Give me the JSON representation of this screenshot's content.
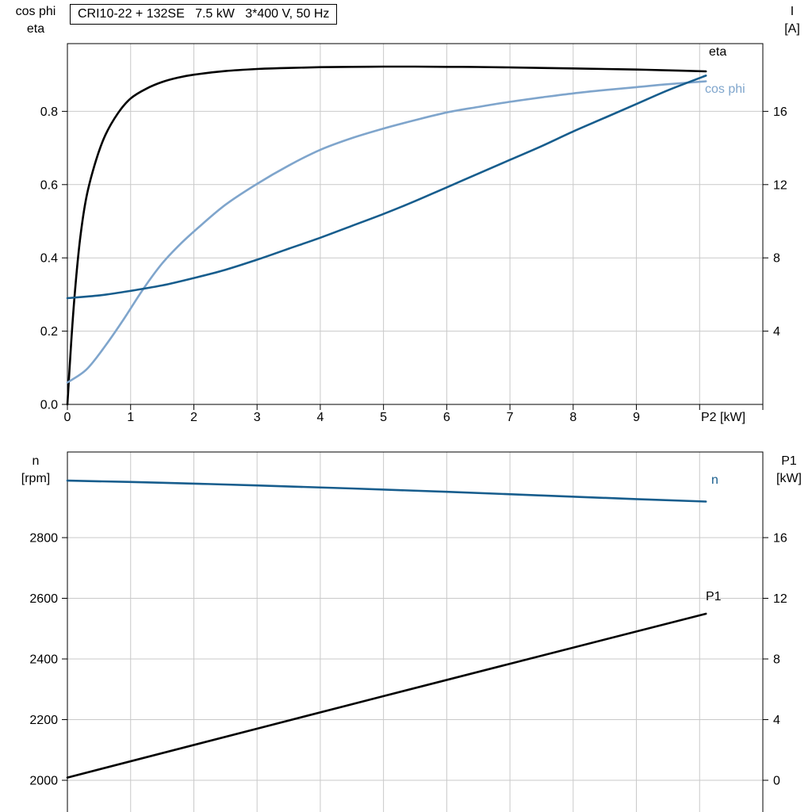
{
  "page": {
    "background": "#ffffff"
  },
  "title_box": {
    "text": "CRI10-22 + 132SE   7.5 kW   3*400 V, 50 Hz"
  },
  "corner_labels": {
    "top_left": [
      "cos phi",
      "eta"
    ],
    "top_right": [
      "I",
      "[A]"
    ],
    "bottom_left": [
      "n",
      "[rpm]"
    ],
    "bottom_right": [
      "P1",
      "[kW]"
    ]
  },
  "curve_labels": [
    {
      "id": "eta",
      "text": "eta",
      "color": "#000000"
    },
    {
      "id": "cosphi",
      "text": "cos phi",
      "color": "#7fa5cc"
    },
    {
      "id": "n",
      "text": "n",
      "color": "#175d8d"
    },
    {
      "id": "p1",
      "text": "P1",
      "color": "#000000"
    }
  ],
  "colors": {
    "grid": "#c9c9c9",
    "axis": "#000000"
  },
  "chart_data": [
    {
      "type": "line",
      "title": "CRI10-22 + 132SE 7.5 kW 3*400 V, 50 Hz",
      "x_axis": {
        "label": "P2 [kW]",
        "min": 0,
        "max": 11,
        "grid_step": 1,
        "ticks": [
          {
            "v": 0,
            "label": "0"
          },
          {
            "v": 1,
            "label": "1"
          },
          {
            "v": 2,
            "label": "2"
          },
          {
            "v": 3,
            "label": "3"
          },
          {
            "v": 4,
            "label": "4"
          },
          {
            "v": 5,
            "label": "5"
          },
          {
            "v": 6,
            "label": "6"
          },
          {
            "v": 7,
            "label": "7"
          },
          {
            "v": 8,
            "label": "8"
          },
          {
            "v": 9,
            "label": "9"
          }
        ]
      },
      "left_axis": {
        "name": "cos phi / eta",
        "ticks": [
          {
            "v": 0,
            "label": "0.0"
          },
          {
            "v": 0.2,
            "label": "0.2"
          },
          {
            "v": 0.4,
            "label": "0.4"
          },
          {
            "v": 0.6,
            "label": "0.6"
          },
          {
            "v": 0.8,
            "label": "0.8"
          }
        ]
      },
      "right_axis": {
        "name": "I [A]",
        "ticks": [
          {
            "v": 4,
            "label": "4"
          },
          {
            "v": 8,
            "label": "8"
          },
          {
            "v": 12,
            "label": "12"
          },
          {
            "v": 16,
            "label": "16"
          }
        ]
      },
      "series": [
        {
          "name": "eta",
          "axis": "left",
          "color": "#000000",
          "points": [
            [
              0,
              0
            ],
            [
              0.06,
              0.17
            ],
            [
              0.12,
              0.31
            ],
            [
              0.2,
              0.45
            ],
            [
              0.3,
              0.565
            ],
            [
              0.45,
              0.665
            ],
            [
              0.6,
              0.735
            ],
            [
              0.8,
              0.795
            ],
            [
              1.0,
              0.835
            ],
            [
              1.25,
              0.862
            ],
            [
              1.5,
              0.88
            ],
            [
              1.75,
              0.892
            ],
            [
              2.0,
              0.9
            ],
            [
              2.5,
              0.91
            ],
            [
              3.0,
              0.9155
            ],
            [
              3.5,
              0.9185
            ],
            [
              4.0,
              0.9205
            ],
            [
              4.5,
              0.9215
            ],
            [
              5.0,
              0.922
            ],
            [
              5.5,
              0.922
            ],
            [
              6.0,
              0.9215
            ],
            [
              6.5,
              0.921
            ],
            [
              7.0,
              0.92
            ],
            [
              7.5,
              0.9185
            ],
            [
              8.0,
              0.917
            ],
            [
              8.5,
              0.9155
            ],
            [
              9.0,
              0.914
            ],
            [
              9.5,
              0.912
            ],
            [
              10.1,
              0.909
            ]
          ]
        },
        {
          "name": "cos phi",
          "axis": "left",
          "color": "#7fa5cc",
          "points": [
            [
              0,
              0.06
            ],
            [
              0.3,
              0.095
            ],
            [
              0.6,
              0.16
            ],
            [
              0.9,
              0.235
            ],
            [
              1.2,
              0.315
            ],
            [
              1.5,
              0.385
            ],
            [
              1.8,
              0.44
            ],
            [
              2.1,
              0.487
            ],
            [
              2.5,
              0.545
            ],
            [
              3.0,
              0.602
            ],
            [
              3.5,
              0.652
            ],
            [
              4.0,
              0.695
            ],
            [
              4.5,
              0.727
            ],
            [
              5.0,
              0.753
            ],
            [
              5.5,
              0.776
            ],
            [
              6.0,
              0.797
            ],
            [
              6.5,
              0.812
            ],
            [
              7.0,
              0.826
            ],
            [
              7.5,
              0.838
            ],
            [
              8.0,
              0.849
            ],
            [
              8.5,
              0.858
            ],
            [
              9.0,
              0.866
            ],
            [
              9.5,
              0.874
            ],
            [
              10.1,
              0.882
            ]
          ]
        },
        {
          "name": "I",
          "axis": "right",
          "unit": "A",
          "color": "#175d8d",
          "points": [
            [
              0,
              5.8
            ],
            [
              0.5,
              5.95
            ],
            [
              1,
              6.2
            ],
            [
              1.5,
              6.5
            ],
            [
              2,
              6.9
            ],
            [
              2.5,
              7.35
            ],
            [
              3,
              7.9
            ],
            [
              3.5,
              8.5
            ],
            [
              4,
              9.1
            ],
            [
              4.5,
              9.75
            ],
            [
              5,
              10.4
            ],
            [
              5.5,
              11.1
            ],
            [
              6,
              11.85
            ],
            [
              6.5,
              12.6
            ],
            [
              7,
              13.35
            ],
            [
              7.5,
              14.1
            ],
            [
              8,
              14.9
            ],
            [
              8.5,
              15.65
            ],
            [
              9,
              16.4
            ],
            [
              9.5,
              17.15
            ],
            [
              10.1,
              17.95
            ]
          ]
        }
      ]
    },
    {
      "type": "line",
      "x_axis": {
        "label": "",
        "min": 0,
        "max": 11,
        "grid_step": 1,
        "ticks": []
      },
      "left_axis": {
        "name": "n [rpm]",
        "ticks": [
          {
            "v": 2800,
            "label": "2800"
          },
          {
            "v": 2600,
            "label": "2600"
          },
          {
            "v": 2400,
            "label": "2400"
          },
          {
            "v": 2200,
            "label": "2200"
          },
          {
            "v": 2000,
            "label": "2000"
          }
        ]
      },
      "right_axis": {
        "name": "P1 [kW]",
        "ticks": [
          {
            "v": 16,
            "label": "16"
          },
          {
            "v": 12,
            "label": "12"
          },
          {
            "v": 8,
            "label": "8"
          },
          {
            "v": 4,
            "label": "4"
          },
          {
            "v": 0,
            "label": "0"
          }
        ]
      },
      "series": [
        {
          "name": "n",
          "axis": "left",
          "unit": "rpm",
          "color": "#175d8d",
          "points": [
            [
              0,
              2988
            ],
            [
              1.5,
              2981
            ],
            [
              3,
              2972
            ],
            [
              4.5,
              2962
            ],
            [
              6,
              2951
            ],
            [
              7.5,
              2939
            ],
            [
              9,
              2927
            ],
            [
              10.1,
              2919
            ]
          ]
        },
        {
          "name": "P1",
          "axis": "right",
          "unit": "kW",
          "color": "#000000",
          "points": [
            [
              0,
              0.18
            ],
            [
              5,
              5.55
            ],
            [
              10.1,
              10.98
            ]
          ]
        }
      ]
    }
  ]
}
